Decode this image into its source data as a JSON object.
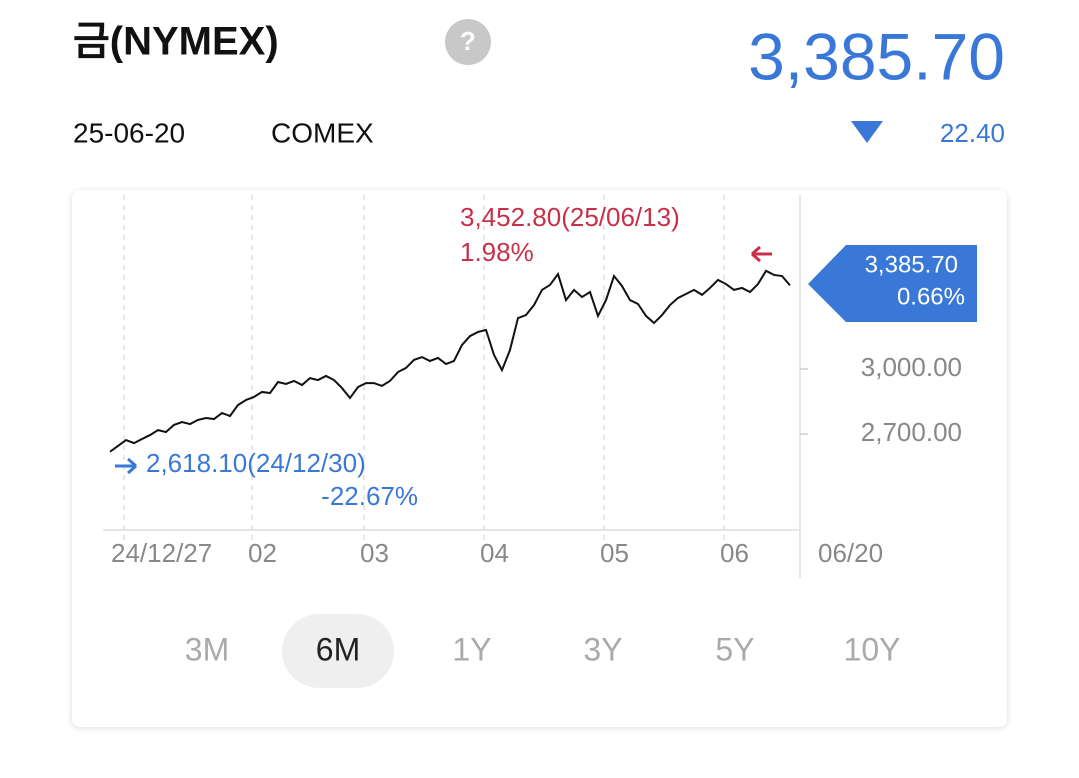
{
  "header": {
    "title": "금(NYMEX)",
    "help": "?",
    "price": "3,385.70",
    "date": "25-06-20",
    "exchange": "COMEX",
    "change": "22.40"
  },
  "chart_data": {
    "type": "line",
    "categories": [
      null,
      "24/12/27",
      null,
      null,
      null,
      null,
      null,
      null,
      null,
      null,
      null,
      null,
      null,
      null,
      null,
      null,
      null,
      "02",
      null,
      null,
      null,
      null,
      null,
      null,
      null,
      null,
      null,
      null,
      null,
      null,
      null,
      "03",
      null,
      null,
      null,
      null,
      null,
      null,
      null,
      null,
      null,
      null,
      null,
      null,
      null,
      null,
      "04",
      null,
      null,
      null,
      null,
      null,
      null,
      null,
      null,
      null,
      null,
      null,
      null,
      null,
      null,
      "05",
      null,
      null,
      null,
      null,
      null,
      null,
      null,
      null,
      null,
      null,
      null,
      null,
      null,
      null,
      "06",
      null,
      null,
      null,
      null,
      null,
      null,
      null,
      null,
      "06/20"
    ],
    "series": [
      {
        "name": "금(NYMEX)",
        "color": "#111111",
        "values": [
          2618.1,
          2645,
          2672,
          2658,
          2677,
          2695,
          2718,
          2709,
          2742,
          2755,
          2746,
          2765,
          2774,
          2769,
          2797,
          2783,
          2834,
          2857,
          2871,
          2894,
          2889,
          2940,
          2931,
          2945,
          2926,
          2958,
          2949,
          2968,
          2949,
          2912,
          2866,
          2917,
          2935,
          2935,
          2922,
          2945,
          2986,
          3005,
          3042,
          3055,
          3037,
          3051,
          3023,
          3037,
          3111,
          3152,
          3171,
          3180,
          3065,
          2995,
          3088,
          3235,
          3249,
          3295,
          3365,
          3388,
          3438,
          3318,
          3365,
          3332,
          3355,
          3245,
          3318,
          3429,
          3383,
          3318,
          3300,
          3245,
          3212,
          3249,
          3295,
          3328,
          3346,
          3365,
          3342,
          3374,
          3411,
          3392,
          3365,
          3374,
          3355,
          3392,
          3452.8,
          3434,
          3429,
          3385.7
        ]
      }
    ],
    "ylim": [
      2257,
      3826
    ],
    "yticks": [
      {
        "value": 3000,
        "label": "3,000.00"
      },
      {
        "value": 2700,
        "label": "2,700.00"
      }
    ],
    "high_label": "3,452.80(25/06/13)",
    "high_change": "1.98%",
    "low_label": "2,618.10(24/12/30)",
    "low_change": "-22.67%",
    "last_label": "3,385.70",
    "last_change": "0.66%"
  },
  "tabs": [
    "3M",
    "6M",
    "1Y",
    "3Y",
    "5Y",
    "10Y"
  ],
  "selected_tab": "6M"
}
